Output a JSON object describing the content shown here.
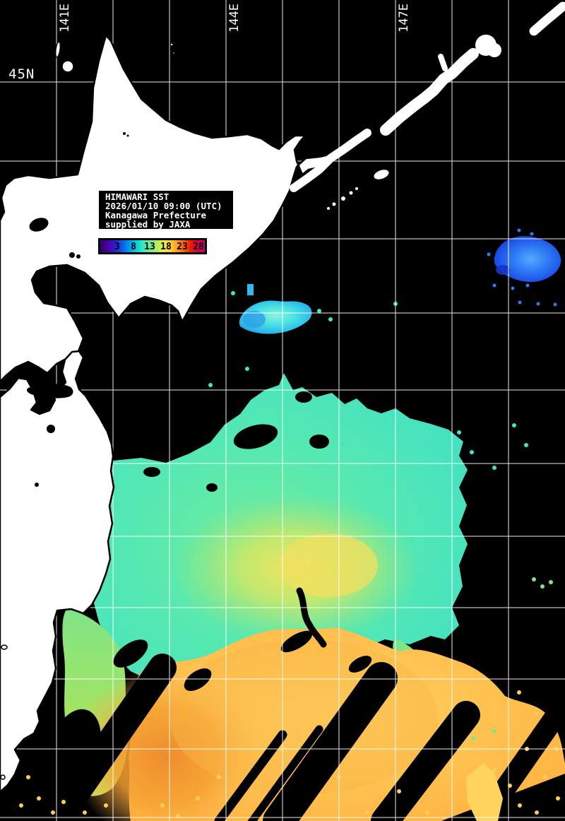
{
  "map": {
    "bg_color": "#000000",
    "land_color": "#ffffff",
    "grid_color": "#ffffff",
    "lat_label": "45N",
    "lon_labels": [
      "141E",
      "144E",
      "147E"
    ],
    "grid": {
      "x_lines": [
        80,
        160,
        240,
        320,
        400,
        480,
        560,
        640,
        720
      ],
      "y_lines": [
        116,
        228,
        338,
        443,
        552,
        656,
        759,
        860,
        961,
        1060,
        1157
      ],
      "lon_label_lines": [
        80,
        320,
        560
      ]
    },
    "sst_palette": {
      "cold_blue": "#2e7bf5",
      "cool_cyan": "#49e2e2",
      "mild_aqua": "#52e8b8",
      "green": "#72e88c",
      "yellow_green": "#c8e868",
      "yellow": "#ffd45e",
      "orange": "#f5a132",
      "deep_orange": "#ee8c2c"
    }
  },
  "info_box": {
    "lines": [
      "HIMAWARI SST",
      "2026/01/10 09:00 (UTC)",
      "Kanagawa Prefecture",
      "supplied by JAXA"
    ]
  },
  "colorbar": {
    "ticks": [
      "3",
      "8",
      "13",
      "18",
      "23",
      "28"
    ],
    "gradient": [
      "#35006e",
      "#4a00a0",
      "#3318cc",
      "#1150e8",
      "#0090f0",
      "#00c8e8",
      "#2ee8c8",
      "#66ee9a",
      "#a8ee66",
      "#e8ee4a",
      "#ffd23a",
      "#ffa01e",
      "#ff5a0a",
      "#f01800",
      "#d4004a",
      "#c80070"
    ]
  }
}
